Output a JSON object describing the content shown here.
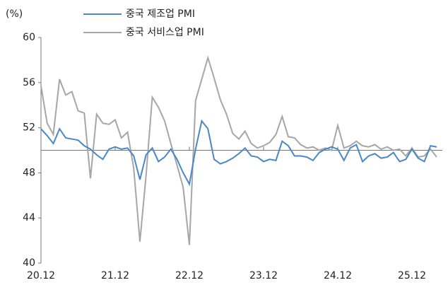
{
  "chart_data": {
    "type": "line",
    "y_label": "(%)",
    "categories": [
      "20.12",
      null,
      null,
      null,
      null,
      null,
      null,
      null,
      null,
      null,
      null,
      null,
      "21.12",
      null,
      null,
      null,
      null,
      null,
      null,
      null,
      null,
      null,
      null,
      null,
      "22.12",
      null,
      null,
      null,
      null,
      null,
      null,
      null,
      null,
      null,
      null,
      null,
      "23.12",
      null,
      null,
      null,
      null,
      null,
      null,
      null,
      null,
      null,
      null,
      null,
      "24.12",
      null,
      null,
      null,
      null,
      null,
      null,
      null,
      null,
      null,
      null,
      null,
      "25.12",
      null,
      null,
      null,
      null
    ],
    "series": [
      {
        "name": "중국 제조업 PMI",
        "color": "#4a86c8",
        "values": [
          51.9,
          51.3,
          50.6,
          51.9,
          51.1,
          51.0,
          50.9,
          50.4,
          50.1,
          49.6,
          49.2,
          50.1,
          50.3,
          50.1,
          50.2,
          49.5,
          47.4,
          49.6,
          50.2,
          49.0,
          49.4,
          50.1,
          49.2,
          48.0,
          47.0,
          50.1,
          52.6,
          51.9,
          49.2,
          48.8,
          49.0,
          49.3,
          49.7,
          50.2,
          49.5,
          49.4,
          49.0,
          49.2,
          49.1,
          50.8,
          50.4,
          49.5,
          49.5,
          49.4,
          49.1,
          49.8,
          50.1,
          50.3,
          50.1,
          49.1,
          50.2,
          50.5,
          49.0,
          49.5,
          49.7,
          49.3,
          49.4,
          49.8,
          49.0,
          49.2,
          50.1,
          49.3,
          49.0,
          50.4,
          50.3
        ]
      },
      {
        "name": "중국 서비스업 PMI",
        "color": "#a6a6a6",
        "values": [
          55.7,
          52.4,
          51.4,
          56.3,
          54.9,
          55.2,
          53.5,
          53.3,
          47.5,
          53.2,
          52.4,
          52.3,
          52.7,
          51.1,
          51.6,
          48.4,
          41.9,
          47.8,
          54.7,
          53.8,
          52.6,
          50.6,
          48.7,
          46.7,
          41.6,
          54.4,
          56.3,
          58.2,
          56.4,
          54.5,
          53.2,
          51.5,
          51.0,
          51.7,
          50.6,
          50.2,
          50.4,
          50.7,
          51.4,
          53.0,
          51.2,
          51.1,
          50.5,
          50.2,
          50.3,
          50.0,
          50.2,
          50.0,
          52.2,
          50.2,
          50.4,
          50.8,
          50.4,
          50.3,
          50.5,
          50.1,
          50.3,
          50.0,
          50.1,
          49.5,
          50.2,
          49.4,
          49.5,
          50.1,
          49.4
        ]
      }
    ],
    "ylim": [
      40,
      60
    ],
    "yticks": [
      40,
      44,
      48,
      52,
      56,
      60
    ],
    "baseline": 50
  }
}
